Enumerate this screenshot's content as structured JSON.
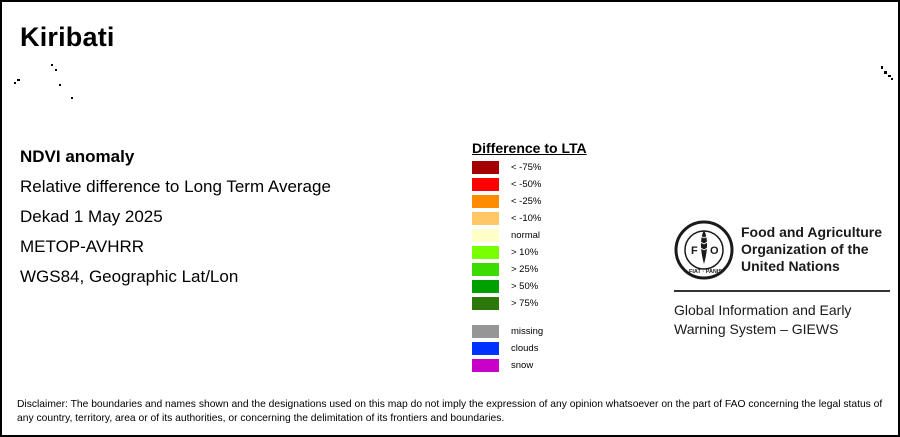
{
  "map": {
    "title": "Kiribati",
    "product": "NDVI anomaly",
    "description": "Relative difference to Long Term Average",
    "period": "Dekad 1 May 2025",
    "sensor": "METOP-AVHRR",
    "projection": "WGS84, Geographic Lat/Lon"
  },
  "legend": {
    "title": "Difference to LTA",
    "classes": [
      {
        "label": "< -75%",
        "color": "#a50000"
      },
      {
        "label": "< -50%",
        "color": "#ff0000"
      },
      {
        "label": "< -25%",
        "color": "#ff8c00"
      },
      {
        "label": "< -10%",
        "color": "#ffc864"
      },
      {
        "label": "normal",
        "color": "#ffffc8"
      },
      {
        "label": "> 10%",
        "color": "#78ff00"
      },
      {
        "label": "> 25%",
        "color": "#3cdc00"
      },
      {
        "label": "> 50%",
        "color": "#00a000"
      },
      {
        "label": "> 75%",
        "color": "#2d780a"
      }
    ],
    "special": [
      {
        "label": "missing",
        "color": "#969696"
      },
      {
        "label": "clouds",
        "color": "#0032ff"
      },
      {
        "label": "snow",
        "color": "#c800c8"
      }
    ]
  },
  "organization": {
    "logo_text": "FAO",
    "logo_motto": "FIAT PANIS",
    "name_line1": "Food and Agriculture",
    "name_line2": "Organization of the",
    "name_line3": "United Nations",
    "system_line1": "Global Information and Early",
    "system_line2": "Warning System – GIEWS"
  },
  "disclaimer": "Disclaimer: The boundaries and names shown and the designations used on this map do not imply the expression of any opinion whatsoever on the part of FAO concerning the legal status of any country, territory, area or of its authorities, or concerning the delimitation of its frontiers and boundaries."
}
